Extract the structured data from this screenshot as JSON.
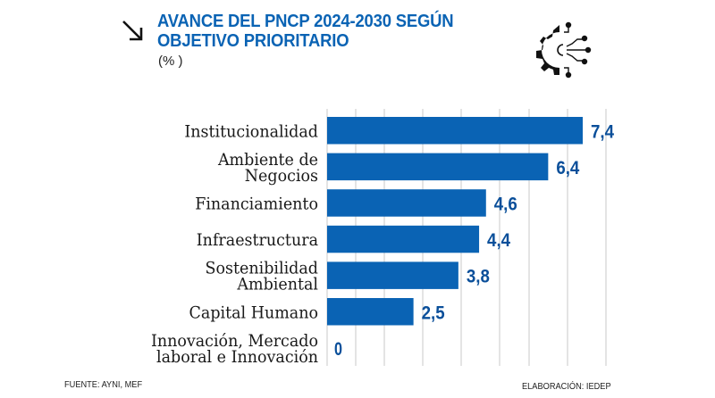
{
  "header": {
    "title_line1": "AVANCE DEL PNCP 2024-2030 SEGÚN",
    "title_line2": "OBJETIVO PRIORITARIO",
    "unit": "(% )",
    "arrow_icon": "arrow-down-right-icon",
    "logo_icon": "gear-circuit-icon"
  },
  "colors": {
    "bar": "#0a63b4",
    "value_label": "#0a4f9a",
    "title": "#0a63b4",
    "grid": "#d9d9d9"
  },
  "chart_data": {
    "type": "bar",
    "orientation": "horizontal",
    "title": "AVANCE DEL PNCP 2024-2030 SEGÚN OBJETIVO PRIORITARIO",
    "unit": "%",
    "categories": [
      [
        "Institucionalidad"
      ],
      [
        "Ambiente de",
        "Negocios"
      ],
      [
        "Financiamiento"
      ],
      [
        "Infraestructura"
      ],
      [
        "Sostenibilidad",
        "Ambiental"
      ],
      [
        "Capital Humano"
      ],
      [
        "Innovación, Mercado",
        "laboral e Innovación"
      ]
    ],
    "values": [
      7.4,
      6.4,
      4.6,
      4.4,
      3.8,
      2.5,
      0
    ],
    "value_labels": [
      "7,4",
      "6,4",
      "4,6",
      "4,4",
      "3,8",
      "2,5",
      "0"
    ],
    "xlim": [
      0,
      8
    ],
    "grid": true
  },
  "footer": {
    "source": "FUENTE: AYNI, MEF",
    "credit": "ELABORACIÓN: IEDEP"
  }
}
